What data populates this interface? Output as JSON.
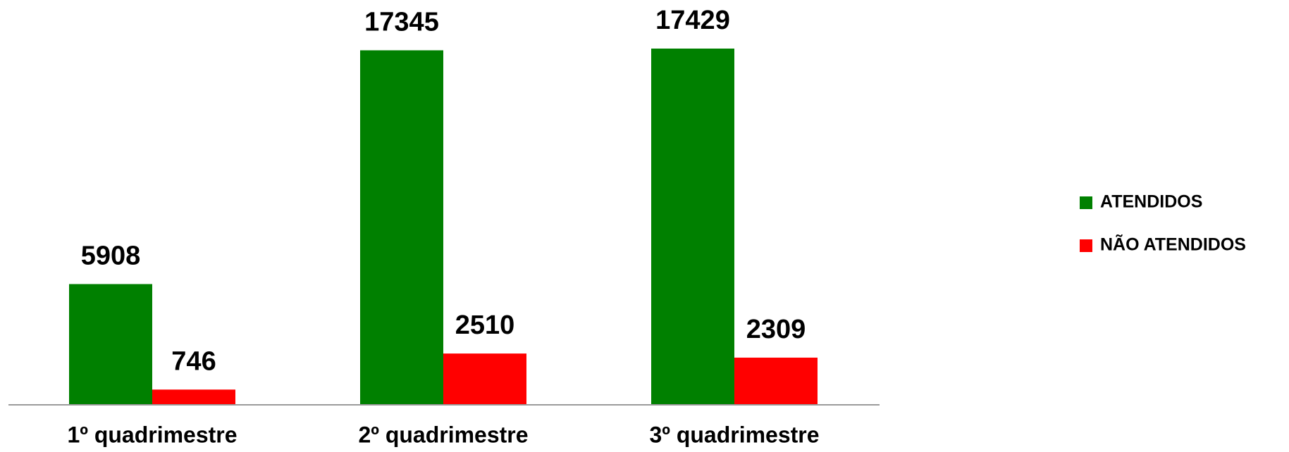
{
  "chart_data": {
    "type": "bar",
    "categories": [
      "1º quadrimestre",
      "2º quadrimestre",
      "3º quadrimestre"
    ],
    "series": [
      {
        "name": "ATENDIDOS",
        "color": "#008000",
        "values": [
          5908,
          17345,
          17429
        ]
      },
      {
        "name": "NÃO ATENDIDOS",
        "color": "#ff0000",
        "values": [
          746,
          2510,
          2309
        ]
      }
    ],
    "legend": "right"
  }
}
